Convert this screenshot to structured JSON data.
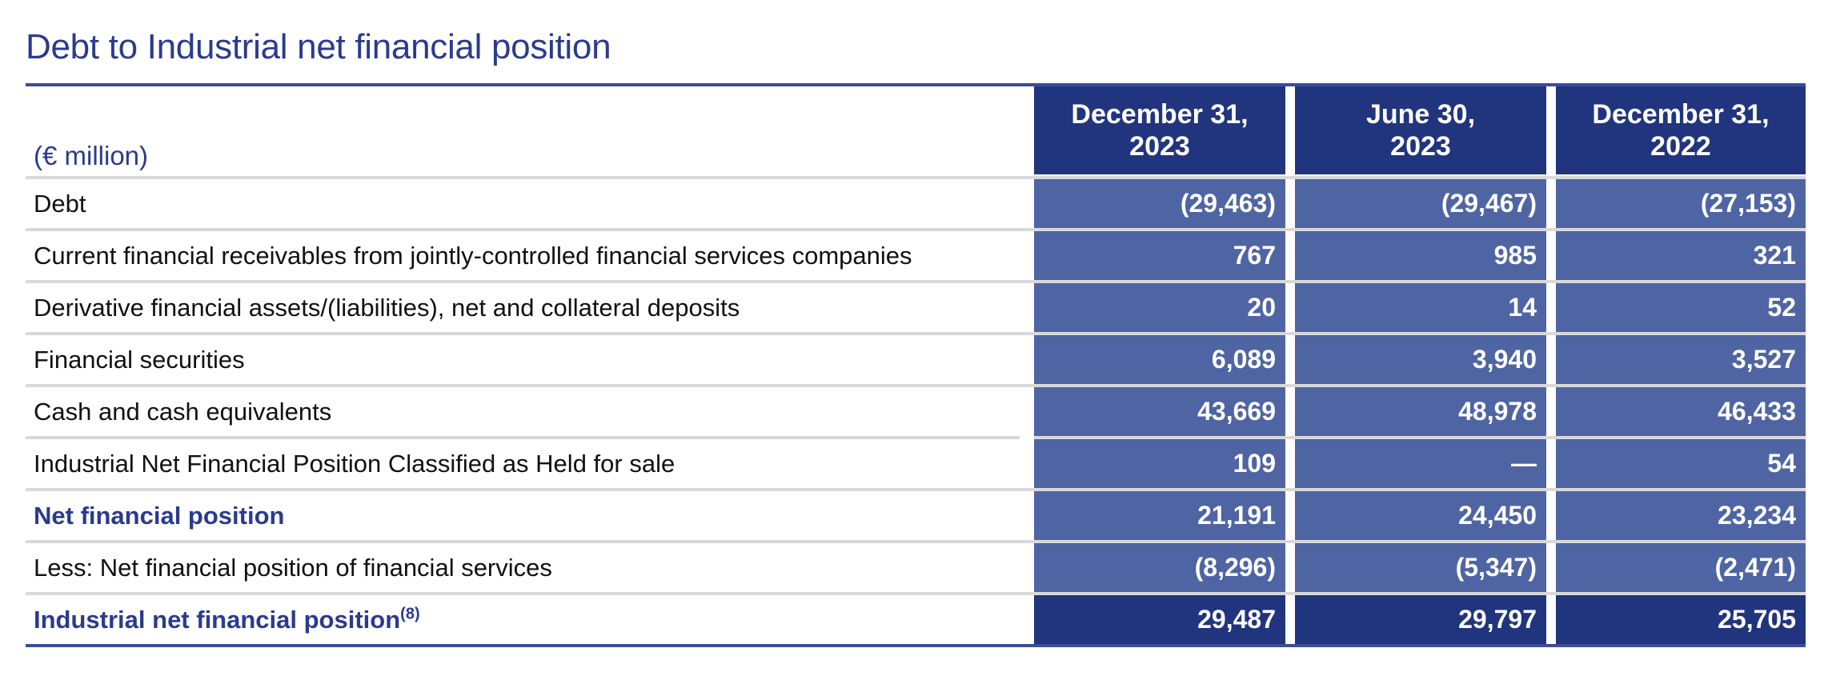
{
  "title": "Debt to Industrial net financial position",
  "units": "(€ million)",
  "columns": [
    {
      "line1": "December 31,",
      "line2": "2023"
    },
    {
      "line1": "June 30,",
      "line2": "2023"
    },
    {
      "line1": "December 31,",
      "line2": "2022"
    }
  ],
  "rows": [
    {
      "label": "Debt",
      "values": [
        "(29,463)",
        "(29,467)",
        "(27,153)"
      ]
    },
    {
      "label": "Current financial receivables from jointly-controlled financial services companies",
      "values": [
        "767",
        "985",
        "321"
      ]
    },
    {
      "label": "Derivative financial assets/(liabilities), net and collateral deposits",
      "values": [
        "20",
        "14",
        "52"
      ]
    },
    {
      "label": "Financial securities",
      "values": [
        "6,089",
        "3,940",
        "3,527"
      ]
    },
    {
      "label": "Cash and cash equivalents",
      "values": [
        "43,669",
        "48,978",
        "46,433"
      ]
    },
    {
      "label": "Industrial Net Financial Position Classified as Held for sale",
      "values": [
        "109",
        "—",
        "54"
      ]
    },
    {
      "label": "Net financial position",
      "values": [
        "21,191",
        "24,450",
        "23,234"
      ]
    },
    {
      "label": "Less: Net financial position of financial services",
      "values": [
        "(8,296)",
        "(5,347)",
        "(2,471)"
      ]
    },
    {
      "label": "Industrial net financial position",
      "footnote": "(8)",
      "values": [
        "29,487",
        "29,797",
        "25,705"
      ]
    }
  ]
}
